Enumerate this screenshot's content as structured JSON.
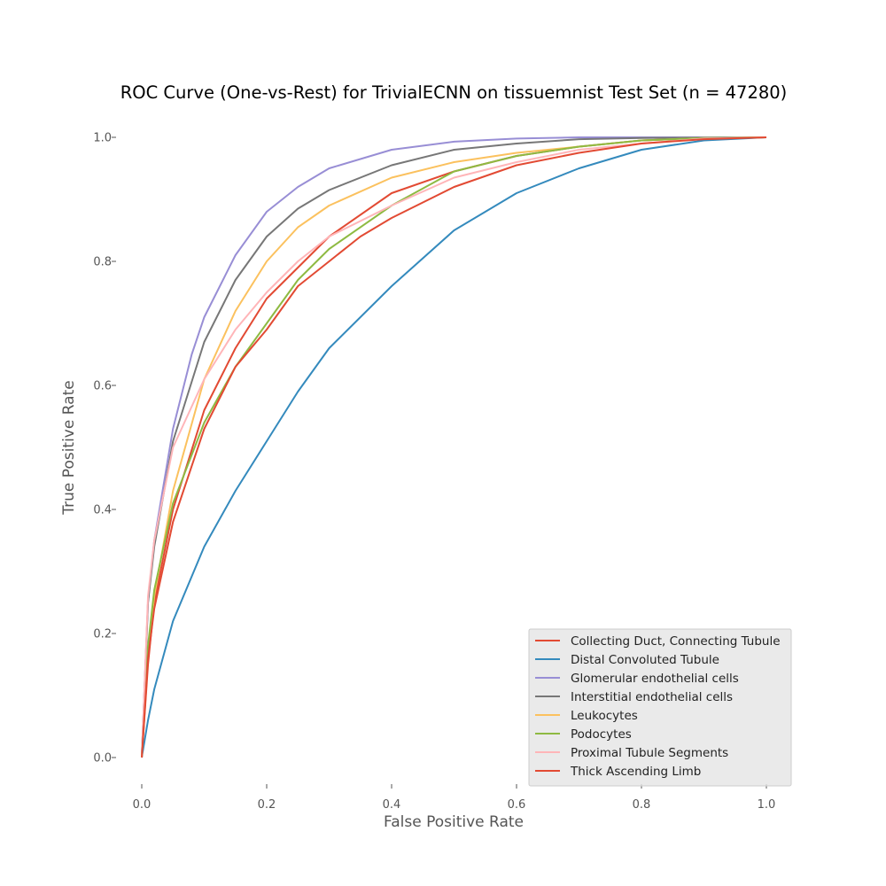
{
  "chart_data": {
    "type": "line",
    "title": "ROC Curve (One-vs-Rest) for TrivialECNN on tissuemnist Test Set (n = 47280)",
    "xlabel": "False Positive Rate",
    "ylabel": "True Positive Rate",
    "xlim": [
      0.0,
      1.0
    ],
    "ylim": [
      0.0,
      1.0
    ],
    "xticks": [
      "0.0",
      "0.2",
      "0.4",
      "0.6",
      "0.8",
      "1.0"
    ],
    "yticks": [
      "0.0",
      "0.2",
      "0.4",
      "0.6",
      "0.8",
      "1.0"
    ],
    "grid": false,
    "legend_position": "lower-right",
    "series": [
      {
        "name": "Collecting Duct, Connecting Tubule",
        "color": "#E24A33",
        "x": [
          0,
          0.01,
          0.02,
          0.05,
          0.1,
          0.15,
          0.2,
          0.3,
          0.4,
          0.5,
          0.6,
          0.7,
          0.8,
          0.9,
          1.0
        ],
        "y": [
          0,
          0.15,
          0.25,
          0.4,
          0.56,
          0.66,
          0.74,
          0.84,
          0.91,
          0.945,
          0.97,
          0.985,
          0.995,
          0.999,
          1.0
        ]
      },
      {
        "name": "Distal Convoluted Tubule",
        "color": "#348ABD",
        "x": [
          0,
          0.01,
          0.02,
          0.05,
          0.1,
          0.15,
          0.2,
          0.25,
          0.3,
          0.4,
          0.5,
          0.6,
          0.7,
          0.8,
          0.9,
          1.0
        ],
        "y": [
          0,
          0.06,
          0.11,
          0.22,
          0.34,
          0.43,
          0.51,
          0.59,
          0.66,
          0.76,
          0.85,
          0.91,
          0.95,
          0.98,
          0.995,
          1.0
        ]
      },
      {
        "name": "Glomerular endothelial cells",
        "color": "#988ED5",
        "x": [
          0,
          0.01,
          0.02,
          0.05,
          0.08,
          0.1,
          0.15,
          0.2,
          0.25,
          0.3,
          0.4,
          0.5,
          0.6,
          0.7,
          0.8,
          1.0
        ],
        "y": [
          0,
          0.25,
          0.35,
          0.53,
          0.65,
          0.71,
          0.81,
          0.88,
          0.92,
          0.95,
          0.98,
          0.993,
          0.998,
          1.0,
          1.0,
          1.0
        ]
      },
      {
        "name": "Interstitial endothelial cells",
        "color": "#777777",
        "x": [
          0,
          0.01,
          0.02,
          0.05,
          0.1,
          0.15,
          0.2,
          0.25,
          0.3,
          0.4,
          0.5,
          0.6,
          0.7,
          0.8,
          1.0
        ],
        "y": [
          0,
          0.25,
          0.34,
          0.51,
          0.67,
          0.77,
          0.84,
          0.885,
          0.915,
          0.955,
          0.98,
          0.99,
          0.997,
          0.999,
          1.0
        ]
      },
      {
        "name": "Leukocytes",
        "color": "#FBC15E",
        "x": [
          0,
          0.01,
          0.02,
          0.05,
          0.1,
          0.15,
          0.2,
          0.25,
          0.3,
          0.4,
          0.5,
          0.6,
          0.7,
          0.8,
          0.9,
          1.0
        ],
        "y": [
          0,
          0.17,
          0.26,
          0.43,
          0.61,
          0.72,
          0.8,
          0.855,
          0.89,
          0.935,
          0.96,
          0.975,
          0.985,
          0.995,
          0.999,
          1.0
        ]
      },
      {
        "name": "Podocytes",
        "color": "#8EBA42",
        "x": [
          0,
          0.01,
          0.02,
          0.05,
          0.1,
          0.15,
          0.2,
          0.25,
          0.3,
          0.4,
          0.5,
          0.6,
          0.7,
          0.8,
          0.9,
          1.0
        ],
        "y": [
          0,
          0.18,
          0.27,
          0.41,
          0.54,
          0.63,
          0.7,
          0.77,
          0.82,
          0.89,
          0.945,
          0.97,
          0.985,
          0.995,
          0.999,
          1.0
        ]
      },
      {
        "name": "Proximal Tubule Segments",
        "color": "#FFB5B8",
        "x": [
          0,
          0.01,
          0.02,
          0.05,
          0.1,
          0.15,
          0.2,
          0.25,
          0.3,
          0.4,
          0.5,
          0.6,
          0.7,
          0.8,
          0.9,
          1.0
        ],
        "y": [
          0,
          0.26,
          0.35,
          0.5,
          0.61,
          0.69,
          0.75,
          0.8,
          0.84,
          0.89,
          0.935,
          0.96,
          0.98,
          0.99,
          0.998,
          1.0
        ]
      },
      {
        "name": "Thick Ascending Limb",
        "color": "#E24A33",
        "x": [
          0,
          0.01,
          0.02,
          0.05,
          0.1,
          0.15,
          0.2,
          0.25,
          0.3,
          0.35,
          0.4,
          0.5,
          0.6,
          0.7,
          0.8,
          0.9,
          1.0
        ],
        "y": [
          0,
          0.16,
          0.24,
          0.38,
          0.53,
          0.63,
          0.69,
          0.76,
          0.8,
          0.84,
          0.87,
          0.92,
          0.955,
          0.975,
          0.99,
          0.997,
          1.0
        ]
      }
    ]
  }
}
